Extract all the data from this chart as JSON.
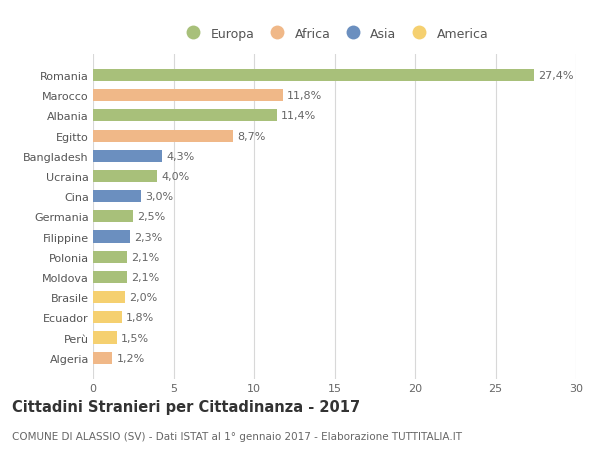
{
  "countries": [
    "Romania",
    "Marocco",
    "Albania",
    "Egitto",
    "Bangladesh",
    "Ucraina",
    "Cina",
    "Germania",
    "Filippine",
    "Polonia",
    "Moldova",
    "Brasile",
    "Ecuador",
    "Perù",
    "Algeria"
  ],
  "values": [
    27.4,
    11.8,
    11.4,
    8.7,
    4.3,
    4.0,
    3.0,
    2.5,
    2.3,
    2.1,
    2.1,
    2.0,
    1.8,
    1.5,
    1.2
  ],
  "labels": [
    "27,4%",
    "11,8%",
    "11,4%",
    "8,7%",
    "4,3%",
    "4,0%",
    "3,0%",
    "2,5%",
    "2,3%",
    "2,1%",
    "2,1%",
    "2,0%",
    "1,8%",
    "1,5%",
    "1,2%"
  ],
  "continents": [
    "Europa",
    "Africa",
    "Europa",
    "Africa",
    "Asia",
    "Europa",
    "Asia",
    "Europa",
    "Asia",
    "Europa",
    "Europa",
    "America",
    "America",
    "America",
    "Africa"
  ],
  "colors": {
    "Europa": "#a8c07a",
    "Africa": "#f0b888",
    "Asia": "#6b8fbf",
    "America": "#f5d070"
  },
  "legend_order": [
    "Europa",
    "Africa",
    "Asia",
    "America"
  ],
  "xlim": [
    0,
    30
  ],
  "xticks": [
    0,
    5,
    10,
    15,
    20,
    25,
    30
  ],
  "title": "Cittadini Stranieri per Cittadinanza - 2017",
  "subtitle": "COMUNE DI ALASSIO (SV) - Dati ISTAT al 1° gennaio 2017 - Elaborazione TUTTITALIA.IT",
  "bg_color": "#ffffff",
  "grid_color": "#d8d8d8",
  "bar_height": 0.6,
  "title_fontsize": 10.5,
  "subtitle_fontsize": 7.5,
  "label_fontsize": 8,
  "tick_fontsize": 8,
  "legend_fontsize": 9
}
